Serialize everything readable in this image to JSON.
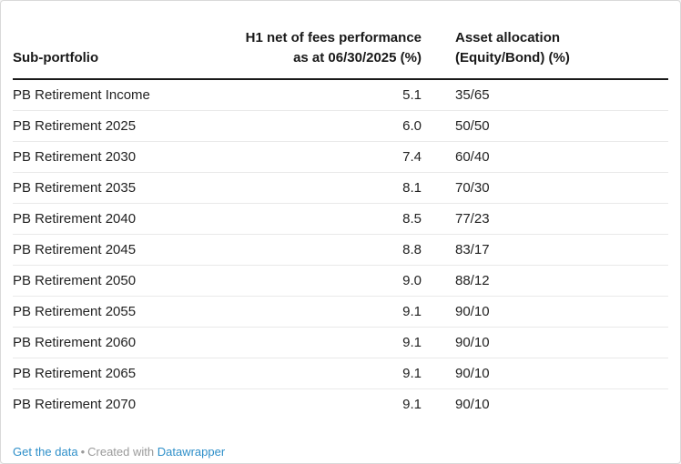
{
  "table": {
    "columns": {
      "portfolio": {
        "label": "Sub-portfolio"
      },
      "performance": {
        "line1": "H1 net of fees performance",
        "line2": "as at 06/30/2025 (%)"
      },
      "allocation": {
        "line1": "Asset allocation",
        "line2": "(Equity/Bond) (%)"
      }
    },
    "rows": [
      {
        "name": "PB Retirement Income",
        "performance": "5.1",
        "allocation": "35/65"
      },
      {
        "name": "PB Retirement 2025",
        "performance": "6.0",
        "allocation": "50/50"
      },
      {
        "name": "PB Retirement 2030",
        "performance": "7.4",
        "allocation": "60/40"
      },
      {
        "name": "PB Retirement 2035",
        "performance": "8.1",
        "allocation": "70/30"
      },
      {
        "name": "PB Retirement 2040",
        "performance": "8.5",
        "allocation": "77/23"
      },
      {
        "name": "PB Retirement 2045",
        "performance": "8.8",
        "allocation": "83/17"
      },
      {
        "name": "PB Retirement 2050",
        "performance": "9.0",
        "allocation": "88/12"
      },
      {
        "name": "PB Retirement 2055",
        "performance": "9.1",
        "allocation": "90/10"
      },
      {
        "name": "PB Retirement 2060",
        "performance": "9.1",
        "allocation": "90/10"
      },
      {
        "name": "PB Retirement 2065",
        "performance": "9.1",
        "allocation": "90/10"
      },
      {
        "name": "PB Retirement 2070",
        "performance": "9.1",
        "allocation": "90/10"
      }
    ]
  },
  "footer": {
    "get_data_label": "Get the data",
    "separator": "•",
    "created_with_label": "Created with",
    "brand_label": "Datawrapper"
  },
  "colors": {
    "link_blue": "#2e8fc9",
    "header_rule": "#1a1a1a",
    "row_divider": "#e9e9e9",
    "body_text": "#222222",
    "muted_text": "#9a9a9a",
    "card_border": "#d9d9d9"
  },
  "chart_data": {
    "type": "table",
    "columns": [
      "Sub-portfolio",
      "H1 net of fees performance as at 06/30/2025 (%)",
      "Asset allocation (Equity/Bond) (%)"
    ],
    "rows": [
      [
        "PB Retirement Income",
        5.1,
        "35/65"
      ],
      [
        "PB Retirement 2025",
        6.0,
        "50/50"
      ],
      [
        "PB Retirement 2030",
        7.4,
        "60/40"
      ],
      [
        "PB Retirement 2035",
        8.1,
        "70/30"
      ],
      [
        "PB Retirement 2040",
        8.5,
        "77/23"
      ],
      [
        "PB Retirement 2045",
        8.8,
        "83/17"
      ],
      [
        "PB Retirement 2050",
        9.0,
        "88/12"
      ],
      [
        "PB Retirement 2055",
        9.1,
        "90/10"
      ],
      [
        "PB Retirement 2060",
        9.1,
        "90/10"
      ],
      [
        "PB Retirement 2065",
        9.1,
        "90/10"
      ],
      [
        "PB Retirement 2070",
        9.1,
        "90/10"
      ]
    ]
  }
}
